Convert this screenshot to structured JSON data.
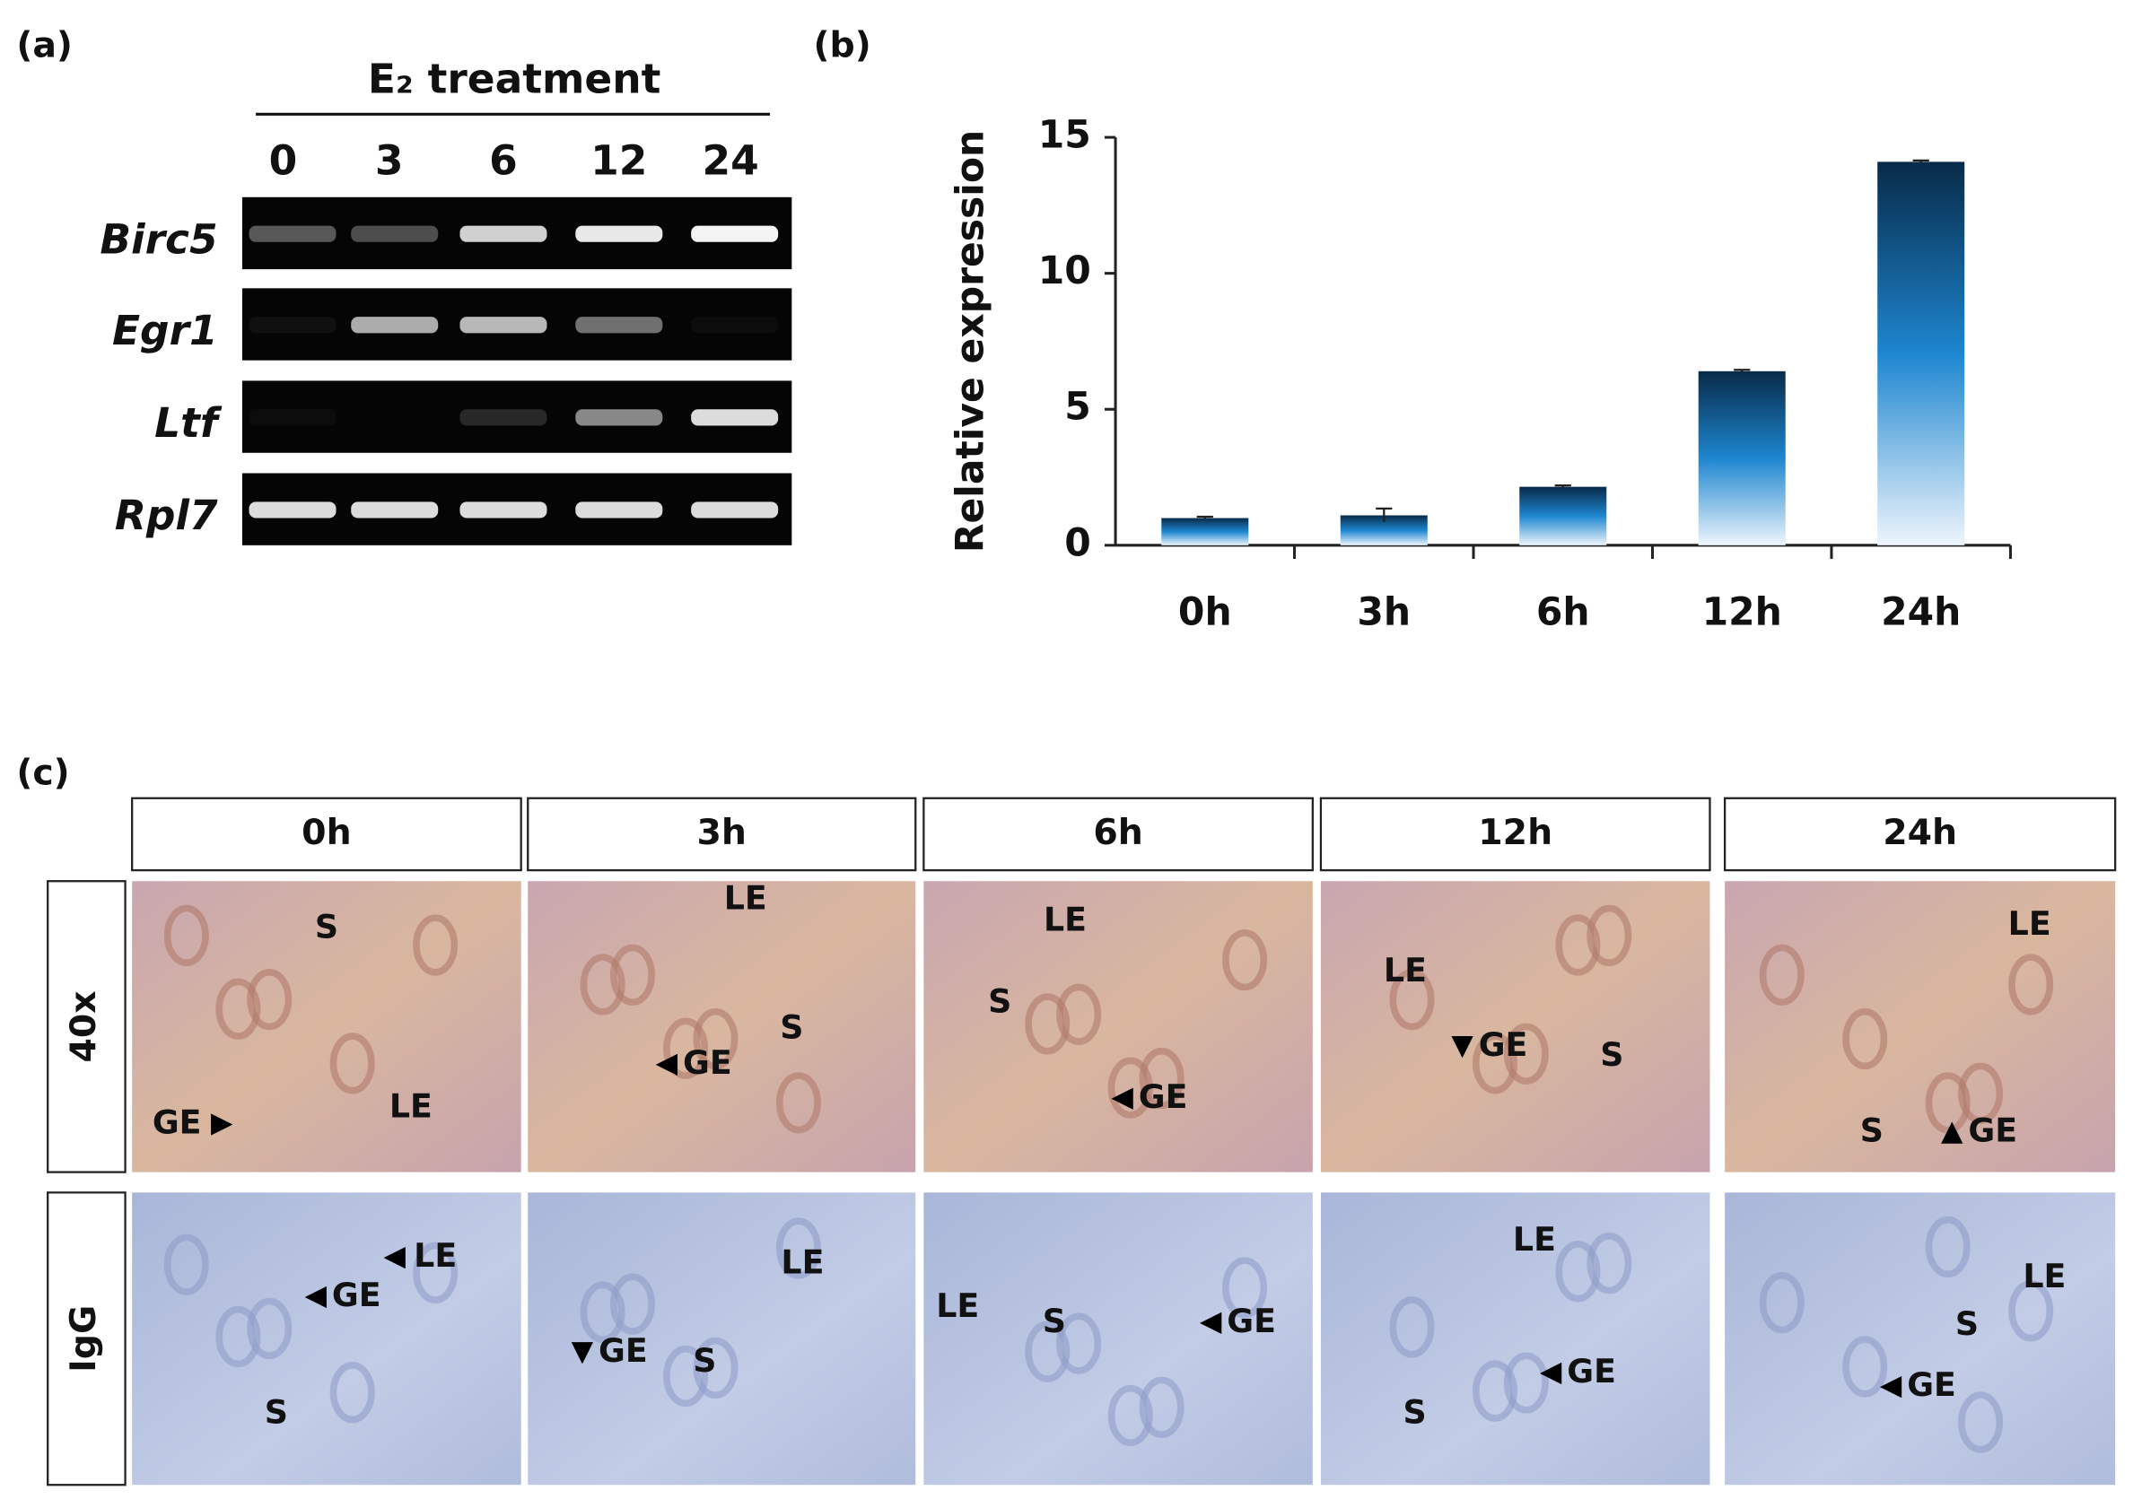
{
  "panel_a": {
    "label": "(a)",
    "header": "E₂ treatment",
    "lanes": [
      "0",
      "3",
      "6",
      "12",
      "24"
    ],
    "genes": [
      "Birc5",
      "Egr1",
      "Ltf",
      "Rpl7"
    ]
  },
  "chart_data": {
    "type": "bar",
    "panel_label": "(b)",
    "y_label": "Relative expression",
    "categories": [
      "0h",
      "3h",
      "6h",
      "12h",
      "24h"
    ],
    "values": [
      1.0,
      1.1,
      2.15,
      6.4,
      14.1
    ],
    "errors": [
      0.05,
      0.25,
      0.05,
      0.05,
      0.05
    ],
    "ylim": [
      0,
      15
    ],
    "yticks": [
      0,
      5,
      10,
      15
    ],
    "grid": false
  },
  "panel_c": {
    "label": "(c)",
    "columns": [
      "0h",
      "3h",
      "6h",
      "12h",
      "24h"
    ],
    "rows": [
      "40x",
      "IgG"
    ],
    "annotations": [
      [
        [
          "S",
          "GE",
          "LE"
        ],
        [
          "LE",
          "S",
          "GE"
        ],
        [
          "LE",
          "S",
          "GE"
        ],
        [
          "LE",
          "GE",
          "S"
        ],
        [
          "LE",
          "S",
          "GE"
        ]
      ],
      [
        [
          "LE",
          "GE",
          "S"
        ],
        [
          "LE",
          "GE",
          "S"
        ],
        [
          "LE",
          "S",
          "GE"
        ],
        [
          "LE",
          "GE",
          "S"
        ],
        [
          "LE",
          "S",
          "GE"
        ]
      ]
    ]
  }
}
